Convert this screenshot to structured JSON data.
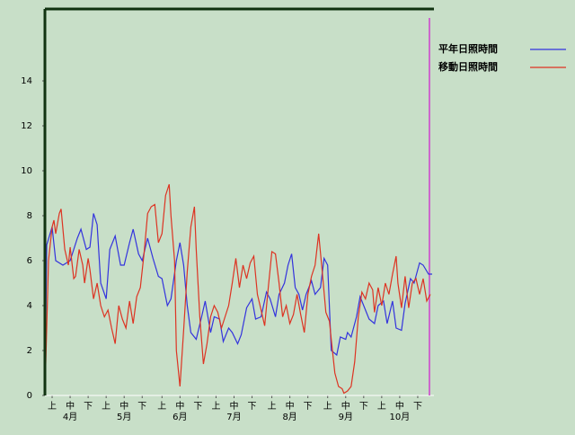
{
  "chart_data": {
    "type": "line",
    "ylim": [
      0,
      17.2
    ],
    "yticks": [
      0,
      2,
      4,
      6,
      8,
      10,
      12,
      14
    ],
    "xlim": [
      0,
      216
    ],
    "xticks": [
      {
        "value": 4,
        "label": "上"
      },
      {
        "value": 14,
        "label": "中"
      },
      {
        "value": 24,
        "label": "下"
      },
      {
        "value": 34,
        "label": "上"
      },
      {
        "value": 44,
        "label": "中"
      },
      {
        "value": 54,
        "label": "下"
      },
      {
        "value": 65,
        "label": "上"
      },
      {
        "value": 75,
        "label": "中"
      },
      {
        "value": 85,
        "label": "下"
      },
      {
        "value": 95,
        "label": "上"
      },
      {
        "value": 105,
        "label": "中"
      },
      {
        "value": 115,
        "label": "下"
      },
      {
        "value": 126,
        "label": "上"
      },
      {
        "value": 136,
        "label": "中"
      },
      {
        "value": 146,
        "label": "下"
      },
      {
        "value": 157,
        "label": "上"
      },
      {
        "value": 167,
        "label": "中"
      },
      {
        "value": 177,
        "label": "下"
      },
      {
        "value": 187,
        "label": "上"
      },
      {
        "value": 197,
        "label": "中"
      },
      {
        "value": 207,
        "label": "下"
      }
    ],
    "month_labels": [
      {
        "value": 14,
        "label": "4月"
      },
      {
        "value": 44,
        "label": "5月"
      },
      {
        "value": 75,
        "label": "6月"
      },
      {
        "value": 105,
        "label": "7月"
      },
      {
        "value": 136,
        "label": "8月"
      },
      {
        "value": 167,
        "label": "9月"
      },
      {
        "value": 197,
        "label": "10月"
      }
    ],
    "vline": {
      "x": 213.5,
      "color": "#cc66cc"
    },
    "series": [
      {
        "name": "平年日照時間",
        "color": "#3333dd",
        "x": [
          0,
          1,
          4,
          6,
          10,
          14,
          18,
          20,
          23,
          25,
          27,
          29,
          31,
          34,
          36,
          39,
          42,
          44,
          47,
          49,
          52,
          54,
          57,
          60,
          63,
          65,
          68,
          70,
          73,
          75,
          77,
          79,
          81,
          84,
          87,
          89,
          92,
          94,
          97,
          99,
          102,
          104,
          107,
          109,
          112,
          115,
          117,
          120,
          123,
          125,
          128,
          130,
          133,
          135,
          137,
          139,
          141,
          143,
          145,
          148,
          150,
          153,
          155,
          157,
          159,
          162,
          164,
          167,
          168,
          170,
          173,
          175,
          178,
          180,
          183,
          185,
          188,
          190,
          193,
          195,
          198,
          200,
          203,
          205,
          208,
          210,
          213,
          215
        ],
        "values": [
          0,
          6.7,
          7.5,
          6.0,
          5.8,
          6.0,
          7.0,
          7.4,
          6.5,
          6.6,
          8.1,
          7.6,
          5.0,
          4.3,
          6.5,
          7.1,
          5.8,
          5.8,
          6.8,
          7.4,
          6.3,
          6.0,
          7.0,
          6.1,
          5.3,
          5.2,
          4.0,
          4.3,
          6.0,
          6.8,
          5.8,
          4.0,
          2.8,
          2.5,
          3.5,
          4.2,
          2.8,
          3.5,
          3.4,
          2.4,
          3.0,
          2.8,
          2.3,
          2.7,
          3.9,
          4.3,
          3.4,
          3.5,
          4.6,
          4.3,
          3.5,
          4.5,
          5.0,
          5.8,
          6.3,
          4.8,
          4.5,
          3.8,
          4.5,
          5.1,
          4.5,
          4.8,
          6.1,
          5.8,
          2.0,
          1.8,
          2.6,
          2.5,
          2.8,
          2.6,
          3.5,
          4.4,
          3.8,
          3.4,
          3.2,
          4.0,
          4.2,
          3.2,
          4.2,
          3.0,
          2.9,
          4.1,
          5.2,
          5.0,
          5.9,
          5.8,
          5.4,
          5.4
        ]
      },
      {
        "name": "移動日照時間",
        "color": "#dd3322",
        "x": [
          0,
          2,
          4,
          5,
          6,
          8,
          9,
          11,
          13,
          14,
          16,
          17,
          19,
          21,
          22,
          24,
          25,
          27,
          29,
          31,
          33,
          35,
          37,
          39,
          41,
          43,
          45,
          47,
          49,
          51,
          53,
          55,
          57,
          59,
          61,
          63,
          65,
          67,
          69,
          70,
          72,
          73,
          75,
          77,
          79,
          81,
          83,
          84,
          86,
          88,
          90,
          92,
          94,
          96,
          98,
          100,
          102,
          104,
          106,
          108,
          110,
          112,
          114,
          116,
          118,
          120,
          122,
          124,
          126,
          128,
          130,
          132,
          134,
          136,
          138,
          140,
          142,
          144,
          146,
          148,
          150,
          152,
          154,
          156,
          158,
          159,
          161,
          163,
          165,
          166,
          168,
          170,
          172,
          174,
          176,
          178,
          180,
          182,
          183,
          185,
          187,
          189,
          191,
          193,
          195,
          196,
          198,
          200,
          202,
          204,
          206,
          208,
          210,
          212,
          214
        ],
        "values": [
          0,
          6.0,
          7.5,
          7.8,
          7.2,
          8.1,
          8.3,
          6.5,
          5.8,
          6.6,
          5.2,
          5.3,
          6.5,
          5.8,
          5.0,
          6.1,
          5.6,
          4.3,
          5.0,
          4.0,
          3.5,
          3.8,
          3.0,
          2.3,
          4.0,
          3.4,
          3.0,
          4.2,
          3.2,
          4.4,
          4.8,
          6.3,
          8.1,
          8.4,
          8.5,
          6.8,
          7.2,
          8.9,
          9.4,
          8.0,
          6.0,
          2.0,
          0.4,
          2.9,
          5.5,
          7.5,
          8.4,
          6.5,
          3.5,
          1.4,
          2.3,
          3.5,
          4.0,
          3.7,
          3.0,
          3.5,
          4.0,
          5.0,
          6.1,
          4.8,
          5.8,
          5.2,
          5.9,
          6.2,
          4.5,
          3.8,
          3.1,
          4.8,
          6.4,
          6.3,
          5.0,
          3.5,
          4.0,
          3.2,
          3.6,
          4.5,
          3.6,
          2.8,
          4.5,
          5.3,
          5.8,
          7.2,
          5.5,
          3.7,
          3.3,
          2.5,
          1.0,
          0.4,
          0.3,
          0.1,
          0.2,
          0.4,
          1.5,
          3.5,
          4.6,
          4.3,
          5.0,
          4.7,
          3.7,
          4.8,
          4.0,
          5.0,
          4.5,
          5.4,
          6.2,
          5.0,
          3.9,
          5.3,
          3.9,
          5.0,
          5.2,
          4.5,
          5.2,
          4.2,
          4.5
        ]
      }
    ]
  }
}
